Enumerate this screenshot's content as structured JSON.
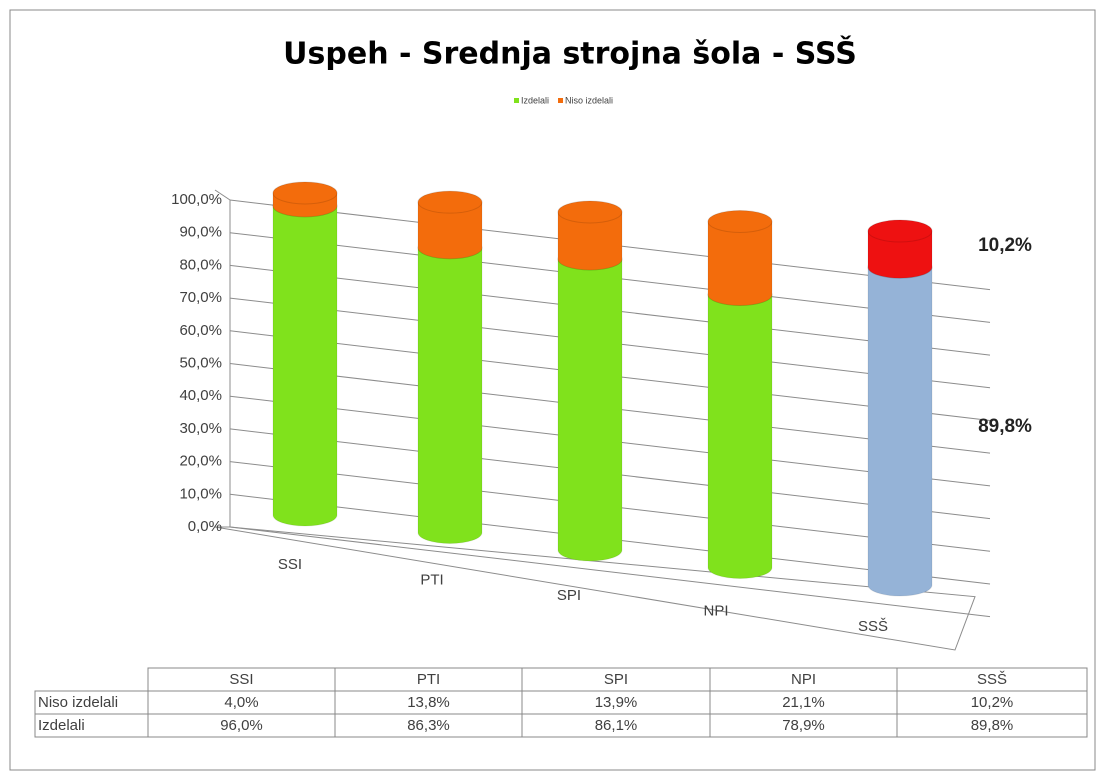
{
  "chart_data": {
    "type": "bar3d_stacked",
    "title": "Uspeh - Srednja strojna šola - SSŠ",
    "categories": [
      "SSI",
      "PTI",
      "SPI",
      "NPI",
      "SSŠ"
    ],
    "series": [
      {
        "name": "Izdelali",
        "color": "#80e21c",
        "colors": [
          "#80e21c",
          "#80e21c",
          "#80e21c",
          "#80e21c",
          "#95b3d7"
        ],
        "values": [
          96.0,
          86.3,
          86.1,
          78.9,
          89.8
        ],
        "value_labels": [
          "96,0%",
          "86,3%",
          "86,1%",
          "78,9%",
          "89,8%"
        ]
      },
      {
        "name": "Niso izdelali",
        "color": "#f36c0c",
        "colors": [
          "#f36c0c",
          "#f36c0c",
          "#f36c0c",
          "#f36c0c",
          "#ee1111"
        ],
        "values": [
          4.0,
          13.8,
          13.9,
          21.1,
          10.2
        ],
        "value_labels": [
          "4,0%",
          "13,8%",
          "13,9%",
          "21,1%",
          "10,2%"
        ]
      }
    ],
    "ylim": [
      0,
      100
    ],
    "yticks": [
      {
        "value": 0,
        "label": "0,0%"
      },
      {
        "value": 10,
        "label": "10,0%"
      },
      {
        "value": 20,
        "label": "20,0%"
      },
      {
        "value": 30,
        "label": "30,0%"
      },
      {
        "value": 40,
        "label": "40,0%"
      },
      {
        "value": 50,
        "label": "50,0%"
      },
      {
        "value": 60,
        "label": "60,0%"
      },
      {
        "value": 70,
        "label": "70,0%"
      },
      {
        "value": 80,
        "label": "80,0%"
      },
      {
        "value": 90,
        "label": "90,0%"
      },
      {
        "value": 100,
        "label": "100,0%"
      }
    ],
    "grid": true,
    "legend": "top",
    "data_table": true
  }
}
